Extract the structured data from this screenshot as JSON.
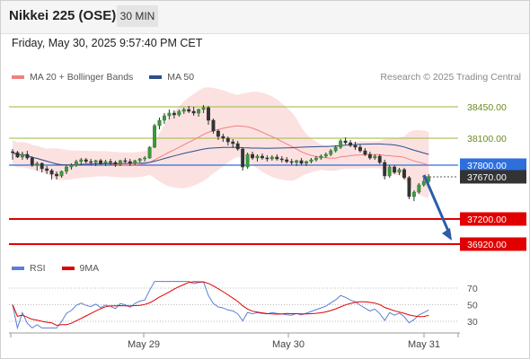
{
  "header": {
    "title": "Nikkei 225 (OSE)",
    "timeframe": "30 MIN"
  },
  "timestamp": "Friday, May 30, 2025 9:57:40 PM CET",
  "legend": {
    "main": [
      {
        "label": "MA 20 + Bollinger Bands",
        "color": "#f08080"
      },
      {
        "label": "MA 50",
        "color": "#2b4f8c"
      }
    ],
    "rsi": [
      {
        "label": "RSI",
        "color": "#5a7fd6"
      },
      {
        "label": "9MA",
        "color": "#e00000"
      }
    ]
  },
  "copyright": "Research © 2025 Trading Central",
  "chart_data": {
    "type": "candlestick",
    "x_labels": [
      "May 29",
      "May 30",
      "May 31"
    ],
    "ylim": [
      36850,
      38650
    ],
    "levels": [
      {
        "value": 38450,
        "label": "38450.00",
        "kind": "resistance",
        "color": "#9aba3a"
      },
      {
        "value": 38100,
        "label": "38100.00",
        "kind": "resistance",
        "color": "#9aba3a"
      },
      {
        "value": 37800,
        "label": "37800.00",
        "kind": "pivot",
        "color": "#2e6fdc"
      },
      {
        "value": 37670,
        "label": "37670.00",
        "kind": "last",
        "color": "#333333"
      },
      {
        "value": 37200,
        "label": "37200.00",
        "kind": "support",
        "color": "#e00000"
      },
      {
        "value": 36920,
        "label": "36920.00",
        "kind": "support",
        "color": "#e00000"
      }
    ],
    "forecast_arrow": {
      "from": 37690,
      "to": 36960
    },
    "ohlc": [
      [
        37950,
        37980,
        37860,
        37940
      ],
      [
        37940,
        37960,
        37880,
        37890
      ],
      [
        37890,
        37950,
        37860,
        37920
      ],
      [
        37920,
        37960,
        37860,
        37880
      ],
      [
        37880,
        37900,
        37780,
        37800
      ],
      [
        37800,
        37840,
        37740,
        37820
      ],
      [
        37820,
        37830,
        37720,
        37760
      ],
      [
        37760,
        37790,
        37700,
        37740
      ],
      [
        37740,
        37760,
        37640,
        37700
      ],
      [
        37700,
        37730,
        37640,
        37680
      ],
      [
        37680,
        37740,
        37660,
        37730
      ],
      [
        37730,
        37800,
        37700,
        37780
      ],
      [
        37780,
        37820,
        37750,
        37800
      ],
      [
        37800,
        37860,
        37780,
        37840
      ],
      [
        37840,
        37880,
        37800,
        37860
      ],
      [
        37860,
        37880,
        37820,
        37840
      ],
      [
        37840,
        37870,
        37800,
        37830
      ],
      [
        37830,
        37860,
        37790,
        37850
      ],
      [
        37850,
        37870,
        37800,
        37820
      ],
      [
        37820,
        37860,
        37790,
        37840
      ],
      [
        37840,
        37870,
        37800,
        37830
      ],
      [
        37830,
        37850,
        37780,
        37810
      ],
      [
        37810,
        37860,
        37790,
        37850
      ],
      [
        37850,
        37880,
        37820,
        37840
      ],
      [
        37840,
        37870,
        37790,
        37820
      ],
      [
        37820,
        37860,
        37800,
        37850
      ],
      [
        37850,
        37880,
        37830,
        37870
      ],
      [
        37870,
        37900,
        37840,
        37880
      ],
      [
        37880,
        38010,
        37870,
        38000
      ],
      [
        38000,
        38260,
        37990,
        38240
      ],
      [
        38240,
        38330,
        38200,
        38300
      ],
      [
        38300,
        38380,
        38260,
        38350
      ],
      [
        38350,
        38420,
        38310,
        38380
      ],
      [
        38380,
        38410,
        38320,
        38360
      ],
      [
        38360,
        38420,
        38340,
        38400
      ],
      [
        38400,
        38440,
        38370,
        38420
      ],
      [
        38420,
        38460,
        38380,
        38400
      ],
      [
        38400,
        38450,
        38350,
        38380
      ],
      [
        38380,
        38430,
        38340,
        38420
      ],
      [
        38420,
        38470,
        38380,
        38440
      ],
      [
        38440,
        38460,
        38250,
        38300
      ],
      [
        38300,
        38320,
        38150,
        38180
      ],
      [
        38180,
        38200,
        38080,
        38120
      ],
      [
        38120,
        38150,
        38060,
        38100
      ],
      [
        38100,
        38120,
        38020,
        38060
      ],
      [
        38060,
        38090,
        37990,
        38040
      ],
      [
        38040,
        38070,
        37960,
        37980
      ],
      [
        37980,
        38000,
        37740,
        37780
      ],
      [
        37780,
        37940,
        37760,
        37920
      ],
      [
        37920,
        37950,
        37860,
        37880
      ],
      [
        37880,
        37920,
        37840,
        37900
      ],
      [
        37900,
        37930,
        37860,
        37880
      ],
      [
        37880,
        37910,
        37840,
        37870
      ],
      [
        37870,
        37910,
        37850,
        37890
      ],
      [
        37890,
        37920,
        37850,
        37870
      ],
      [
        37870,
        37900,
        37830,
        37860
      ],
      [
        37860,
        37890,
        37820,
        37840
      ],
      [
        37840,
        37870,
        37800,
        37830
      ],
      [
        37830,
        37860,
        37790,
        37850
      ],
      [
        37850,
        37880,
        37800,
        37820
      ],
      [
        37820,
        37850,
        37790,
        37840
      ],
      [
        37840,
        37880,
        37820,
        37860
      ],
      [
        37860,
        37900,
        37840,
        37880
      ],
      [
        37880,
        37920,
        37860,
        37900
      ],
      [
        37900,
        37940,
        37880,
        37920
      ],
      [
        37920,
        37980,
        37900,
        37960
      ],
      [
        37960,
        38020,
        37940,
        38000
      ],
      [
        38000,
        38090,
        37980,
        38070
      ],
      [
        38070,
        38110,
        38030,
        38050
      ],
      [
        38050,
        38080,
        38000,
        38020
      ],
      [
        38020,
        38060,
        37970,
        38000
      ],
      [
        38000,
        38030,
        37940,
        37960
      ],
      [
        37960,
        37990,
        37900,
        37920
      ],
      [
        37920,
        37950,
        37860,
        37880
      ],
      [
        37880,
        37920,
        37860,
        37900
      ],
      [
        37900,
        37920,
        37810,
        37830
      ],
      [
        37830,
        37860,
        37640,
        37680
      ],
      [
        37680,
        37800,
        37660,
        37780
      ],
      [
        37780,
        37800,
        37700,
        37720
      ],
      [
        37720,
        37770,
        37690,
        37750
      ],
      [
        37750,
        37770,
        37640,
        37660
      ],
      [
        37660,
        37680,
        37420,
        37450
      ],
      [
        37450,
        37520,
        37400,
        37500
      ],
      [
        37500,
        37600,
        37480,
        37580
      ],
      [
        37580,
        37660,
        37560,
        37620
      ],
      [
        37620,
        37700,
        37600,
        37670
      ]
    ],
    "rsi": {
      "ylim": [
        20,
        80
      ],
      "ticks": [
        70,
        50,
        30
      ]
    }
  }
}
